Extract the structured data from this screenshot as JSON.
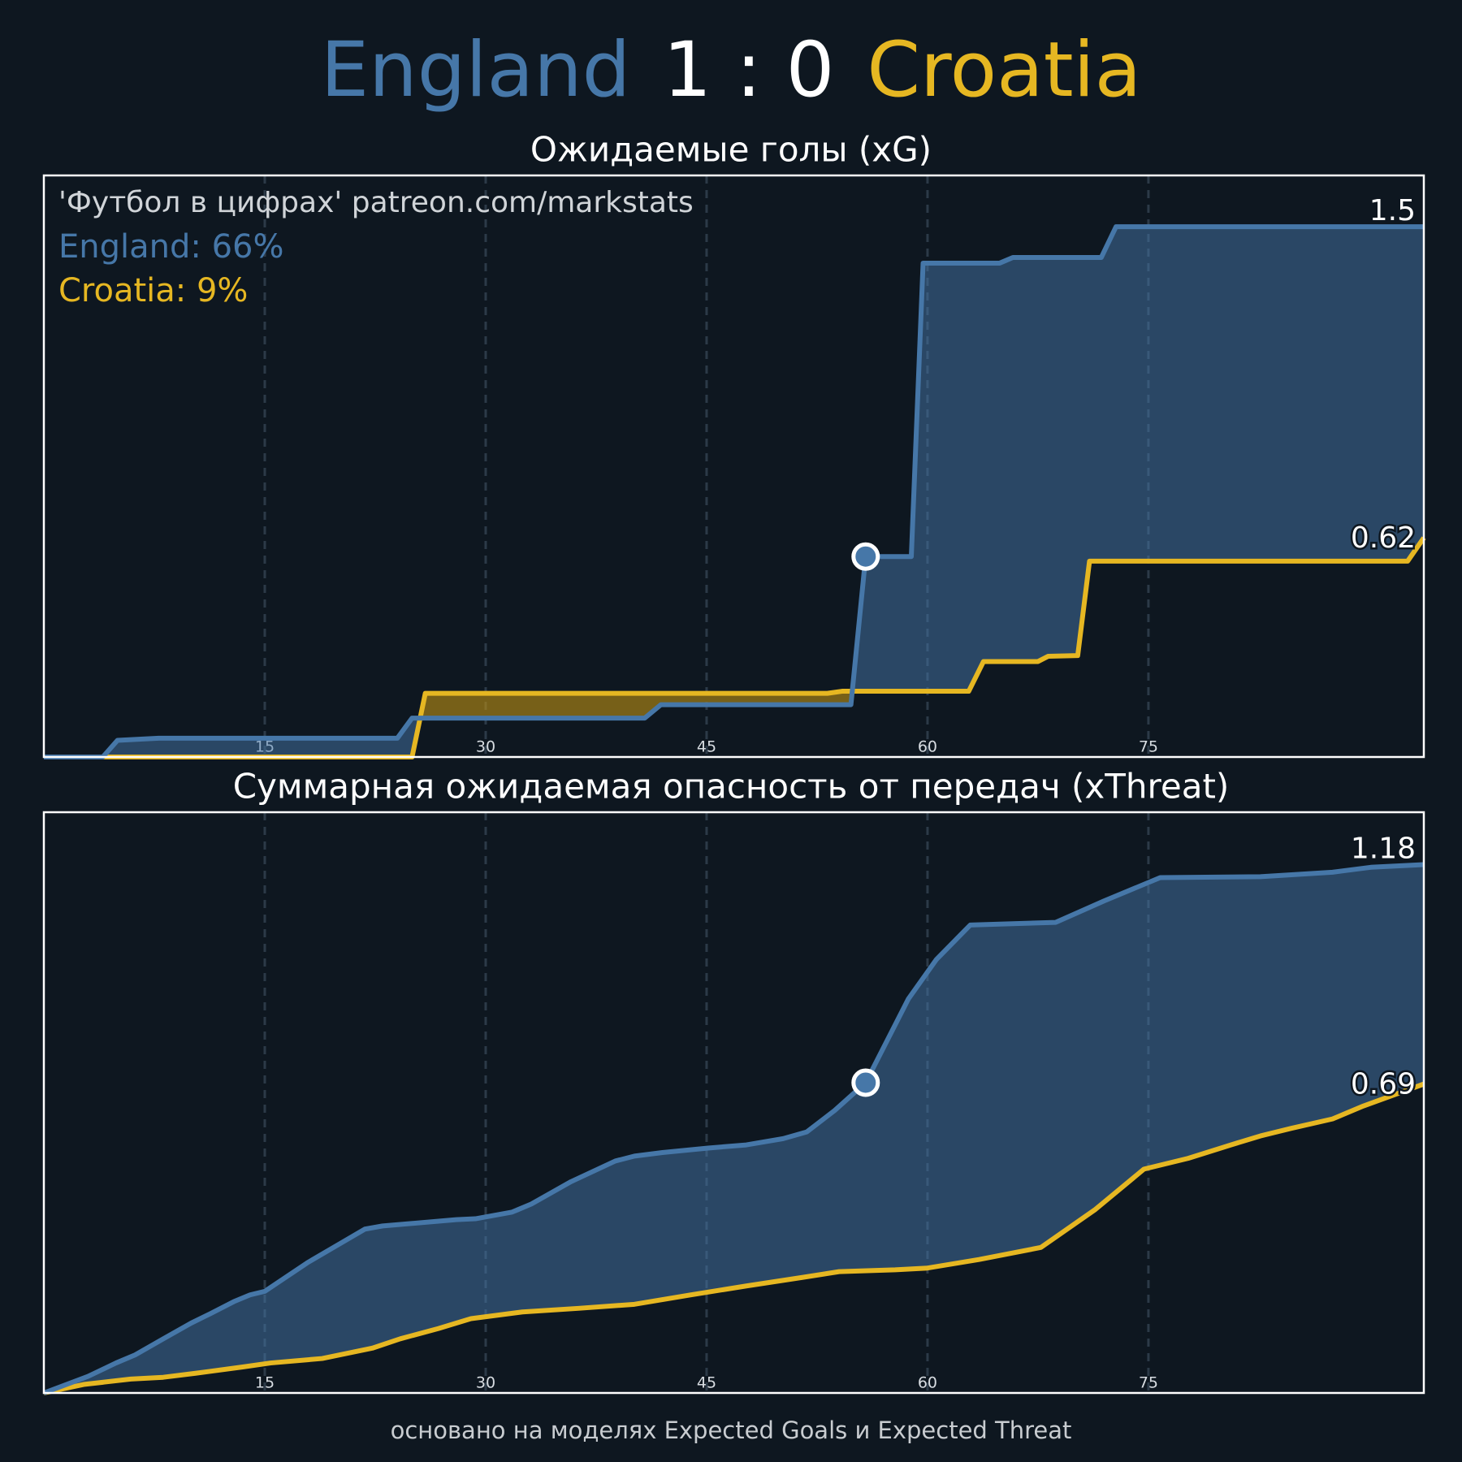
{
  "header": {
    "home": "England",
    "score": "1 : 0",
    "away": "Croatia"
  },
  "watermark": "'Футбол в цифрах' patreon.com/markstats",
  "win_probabilities": [
    "England: 66%",
    "Croatia: 9%"
  ],
  "footer": "основано на моделях Expected Goals и Expected Threat",
  "chart_data": [
    {
      "type": "line",
      "title": "Ожидаемые голы (xG)",
      "xlim": [
        0,
        93.7
      ],
      "xticks": [
        15,
        30,
        45,
        60,
        75
      ],
      "ylim": [
        0,
        1.645
      ],
      "grid": true,
      "goal_minute": 55.8,
      "series": [
        {
          "name": "England",
          "color": "#4677a8",
          "x": [
            0,
            4,
            5,
            7.8,
            24,
            25,
            40.8,
            41.9,
            54.8,
            55.8,
            58.9,
            59.7,
            64.9,
            65.8,
            71.8,
            72.8,
            93.7
          ],
          "values": [
            0,
            0,
            0.047,
            0.053,
            0.053,
            0.11,
            0.11,
            0.148,
            0.148,
            0.567,
            0.567,
            1.397,
            1.397,
            1.413,
            1.413,
            1.5,
            1.5
          ]
        },
        {
          "name": "Croatia",
          "color": "#e6b722",
          "x": [
            0,
            25,
            25.9,
            53.2,
            54.2,
            62.8,
            63.8,
            67.5,
            68.2,
            70.2,
            71,
            92.6,
            93.7
          ],
          "values": [
            0,
            0,
            0.18,
            0.18,
            0.186,
            0.186,
            0.27,
            0.27,
            0.285,
            0.287,
            0.554,
            0.554,
            0.62
          ]
        }
      ]
    },
    {
      "type": "line",
      "title": "Суммарная ожидаемая опасность от передач (xThreat)",
      "xlim": [
        0,
        93.7
      ],
      "xticks": [
        15,
        30,
        45,
        60,
        75
      ],
      "ylim": [
        0,
        1.297
      ],
      "grid": true,
      "goal_minute": 55.8,
      "series": [
        {
          "name": "England",
          "color": "#4677a8",
          "x": [
            0,
            3,
            4.9,
            6.2,
            7.9,
            10,
            11.3,
            12.9,
            14,
            15,
            17.9,
            21.8,
            23,
            28,
            29.3,
            31.8,
            33.1,
            35.8,
            38.8,
            40.1,
            42,
            45.1,
            47.7,
            50.2,
            51.8,
            53.7,
            55.8,
            58.7,
            60.6,
            62.9,
            68.7,
            72,
            75.8,
            82.6,
            87.5,
            90.1,
            93.7
          ],
          "values": [
            0,
            0.037,
            0.067,
            0.085,
            0.117,
            0.156,
            0.177,
            0.204,
            0.219,
            0.227,
            0.291,
            0.366,
            0.373,
            0.387,
            0.389,
            0.404,
            0.422,
            0.472,
            0.518,
            0.529,
            0.537,
            0.547,
            0.554,
            0.568,
            0.583,
            0.631,
            0.693,
            0.88,
            0.968,
            1.045,
            1.051,
            1.099,
            1.151,
            1.153,
            1.163,
            1.174,
            1.18
          ]
        },
        {
          "name": "Croatia",
          "color": "#e6b722",
          "x": [
            0,
            2.7,
            5.9,
            8.1,
            10.3,
            13.5,
            15.4,
            18.9,
            22.3,
            24.2,
            26.8,
            29,
            32.5,
            36.3,
            40.1,
            43.9,
            47.7,
            51.5,
            54,
            57.8,
            60,
            63.5,
            67.7,
            71.4,
            74.7,
            77.7,
            80.6,
            82.6,
            84.7,
            87.5,
            89.6,
            93.7
          ],
          "values": [
            0,
            0.019,
            0.031,
            0.035,
            0.044,
            0.058,
            0.067,
            0.077,
            0.1,
            0.121,
            0.144,
            0.166,
            0.181,
            0.189,
            0.198,
            0.219,
            0.239,
            0.258,
            0.271,
            0.275,
            0.279,
            0.298,
            0.325,
            0.41,
            0.5,
            0.524,
            0.554,
            0.574,
            0.591,
            0.612,
            0.641,
            0.69
          ]
        }
      ]
    }
  ]
}
